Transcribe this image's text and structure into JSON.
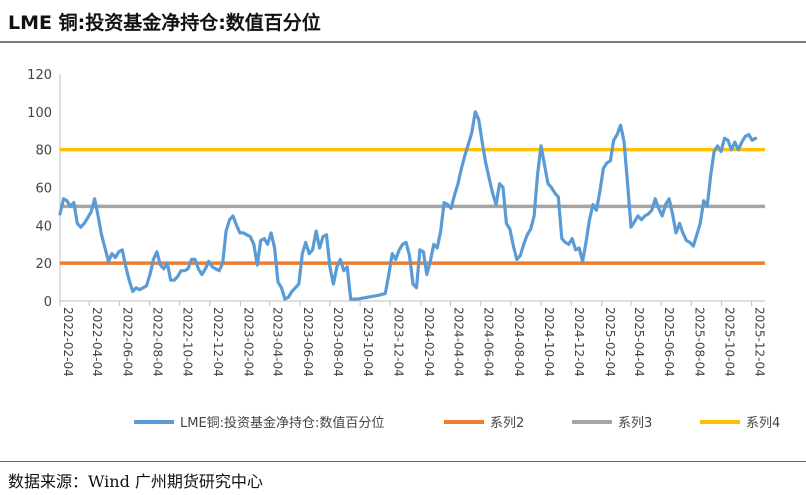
{
  "title": "LME 铜:投资基金净持仓:数值百分位",
  "source": "数据来源：Wind 广州期货研究中心",
  "chart_data": {
    "type": "line",
    "title": "LME 铜:投资基金净持仓:数值百分位",
    "xlabel": "",
    "ylabel": "",
    "ylim": [
      0,
      120
    ],
    "yticks": [
      0,
      20,
      40,
      60,
      80,
      100,
      120
    ],
    "xlim": [
      "2022-02-04",
      "2025-12-31"
    ],
    "xticks": [
      "2022-02-04",
      "2022-04-04",
      "2022-06-04",
      "2022-08-04",
      "2022-10-04",
      "2022-12-04",
      "2023-02-04",
      "2023-04-04",
      "2023-06-04",
      "2023-08-04",
      "2023-10-04",
      "2023-12-04",
      "2024-02-04",
      "2024-04-04",
      "2024-06-04",
      "2024-08-04",
      "2024-10-04",
      "2024-12-04",
      "2025-02-04",
      "2025-04-04",
      "2025-06-04",
      "2025-08-04",
      "2025-10-04",
      "2025-12-04"
    ],
    "grid": false,
    "legend": "bottom",
    "series": [
      {
        "name": "LME铜:投资基金净持仓:数值百分位",
        "color": "#5b9bd5",
        "points": [
          [
            "2022-02-04",
            46
          ],
          [
            "2022-02-11",
            54
          ],
          [
            "2022-02-18",
            53
          ],
          [
            "2022-02-25",
            50
          ],
          [
            "2022-03-04",
            52
          ],
          [
            "2022-03-11",
            41
          ],
          [
            "2022-03-18",
            39
          ],
          [
            "2022-03-25",
            41
          ],
          [
            "2022-04-01",
            44
          ],
          [
            "2022-04-08",
            47
          ],
          [
            "2022-04-15",
            54
          ],
          [
            "2022-04-22",
            45
          ],
          [
            "2022-04-29",
            35
          ],
          [
            "2022-05-06",
            28
          ],
          [
            "2022-05-13",
            21
          ],
          [
            "2022-05-20",
            25
          ],
          [
            "2022-05-27",
            23
          ],
          [
            "2022-06-03",
            26
          ],
          [
            "2022-06-10",
            27
          ],
          [
            "2022-06-17",
            18
          ],
          [
            "2022-06-24",
            11
          ],
          [
            "2022-07-01",
            5
          ],
          [
            "2022-07-08",
            7
          ],
          [
            "2022-07-15",
            6
          ],
          [
            "2022-07-22",
            7
          ],
          [
            "2022-07-29",
            8
          ],
          [
            "2022-08-05",
            14
          ],
          [
            "2022-08-12",
            22
          ],
          [
            "2022-08-19",
            26
          ],
          [
            "2022-08-26",
            19
          ],
          [
            "2022-09-02",
            17
          ],
          [
            "2022-09-09",
            20
          ],
          [
            "2022-09-16",
            11
          ],
          [
            "2022-09-23",
            11
          ],
          [
            "2022-09-30",
            13
          ],
          [
            "2022-10-07",
            16
          ],
          [
            "2022-10-14",
            16
          ],
          [
            "2022-10-21",
            17
          ],
          [
            "2022-10-28",
            22
          ],
          [
            "2022-11-04",
            22
          ],
          [
            "2022-11-11",
            17
          ],
          [
            "2022-11-18",
            14
          ],
          [
            "2022-11-25",
            17
          ],
          [
            "2022-12-02",
            21
          ],
          [
            "2022-12-09",
            18
          ],
          [
            "2022-12-16",
            17
          ],
          [
            "2022-12-23",
            16
          ],
          [
            "2022-12-30",
            20
          ],
          [
            "2023-01-06",
            37
          ],
          [
            "2023-01-13",
            43
          ],
          [
            "2023-01-20",
            45
          ],
          [
            "2023-01-27",
            40
          ],
          [
            "2023-02-03",
            36
          ],
          [
            "2023-02-10",
            36
          ],
          [
            "2023-02-17",
            35
          ],
          [
            "2023-02-24",
            34
          ],
          [
            "2023-03-03",
            30
          ],
          [
            "2023-03-10",
            19
          ],
          [
            "2023-03-17",
            32
          ],
          [
            "2023-03-24",
            33
          ],
          [
            "2023-03-31",
            30
          ],
          [
            "2023-04-07",
            36
          ],
          [
            "2023-04-14",
            28
          ],
          [
            "2023-04-21",
            10
          ],
          [
            "2023-04-28",
            7
          ],
          [
            "2023-05-05",
            1
          ],
          [
            "2023-05-12",
            2
          ],
          [
            "2023-05-19",
            5
          ],
          [
            "2023-05-26",
            7
          ],
          [
            "2023-06-02",
            9
          ],
          [
            "2023-06-09",
            25
          ],
          [
            "2023-06-16",
            31
          ],
          [
            "2023-06-23",
            25
          ],
          [
            "2023-06-30",
            27
          ],
          [
            "2023-07-07",
            37
          ],
          [
            "2023-07-14",
            28
          ],
          [
            "2023-07-21",
            34
          ],
          [
            "2023-07-28",
            35
          ],
          [
            "2023-08-04",
            18
          ],
          [
            "2023-08-11",
            9
          ],
          [
            "2023-08-18",
            18
          ],
          [
            "2023-08-25",
            22
          ],
          [
            "2023-09-01",
            16
          ],
          [
            "2023-09-08",
            18
          ],
          [
            "2023-09-15",
            1
          ],
          [
            "2023-09-29",
            1
          ],
          [
            "2023-10-20",
            2
          ],
          [
            "2023-11-10",
            3
          ],
          [
            "2023-11-24",
            4
          ],
          [
            "2023-12-01",
            14
          ],
          [
            "2023-12-08",
            25
          ],
          [
            "2023-12-15",
            22
          ],
          [
            "2023-12-22",
            27
          ],
          [
            "2023-12-29",
            30
          ],
          [
            "2024-01-05",
            31
          ],
          [
            "2024-01-12",
            24
          ],
          [
            "2024-01-19",
            9
          ],
          [
            "2024-01-26",
            7
          ],
          [
            "2024-02-02",
            27
          ],
          [
            "2024-02-09",
            26
          ],
          [
            "2024-02-16",
            14
          ],
          [
            "2024-02-23",
            21
          ],
          [
            "2024-03-01",
            30
          ],
          [
            "2024-03-08",
            28
          ],
          [
            "2024-03-15",
            37
          ],
          [
            "2024-03-22",
            52
          ],
          [
            "2024-03-29",
            51
          ],
          [
            "2024-04-05",
            49
          ],
          [
            "2024-04-12",
            56
          ],
          [
            "2024-04-19",
            62
          ],
          [
            "2024-04-26",
            70
          ],
          [
            "2024-05-03",
            77
          ],
          [
            "2024-05-10",
            83
          ],
          [
            "2024-05-17",
            89
          ],
          [
            "2024-05-24",
            100
          ],
          [
            "2024-05-31",
            96
          ],
          [
            "2024-06-07",
            84
          ],
          [
            "2024-06-14",
            73
          ],
          [
            "2024-06-21",
            65
          ],
          [
            "2024-06-28",
            57
          ],
          [
            "2024-07-05",
            51
          ],
          [
            "2024-07-12",
            62
          ],
          [
            "2024-07-19",
            60
          ],
          [
            "2024-07-26",
            41
          ],
          [
            "2024-08-02",
            38
          ],
          [
            "2024-08-09",
            29
          ],
          [
            "2024-08-16",
            22
          ],
          [
            "2024-08-23",
            24
          ],
          [
            "2024-08-30",
            30
          ],
          [
            "2024-09-06",
            35
          ],
          [
            "2024-09-13",
            38
          ],
          [
            "2024-09-20",
            45
          ],
          [
            "2024-09-27",
            67
          ],
          [
            "2024-10-04",
            82
          ],
          [
            "2024-10-11",
            72
          ],
          [
            "2024-10-18",
            62
          ],
          [
            "2024-10-25",
            60
          ],
          [
            "2024-11-01",
            57
          ],
          [
            "2024-11-08",
            55
          ],
          [
            "2024-11-15",
            33
          ],
          [
            "2024-11-22",
            31
          ],
          [
            "2024-11-29",
            30
          ],
          [
            "2024-12-06",
            33
          ],
          [
            "2024-12-13",
            27
          ],
          [
            "2024-12-20",
            28
          ],
          [
            "2024-12-27",
            21
          ],
          [
            "2025-01-03",
            31
          ],
          [
            "2025-01-10",
            43
          ],
          [
            "2025-01-17",
            51
          ],
          [
            "2025-01-24",
            48
          ],
          [
            "2025-01-31",
            58
          ],
          [
            "2025-02-07",
            70
          ],
          [
            "2025-02-14",
            73
          ],
          [
            "2025-02-21",
            74
          ],
          [
            "2025-02-28",
            85
          ],
          [
            "2025-03-07",
            88
          ],
          [
            "2025-03-14",
            93
          ],
          [
            "2025-03-21",
            84
          ],
          [
            "2025-03-28",
            62
          ],
          [
            "2025-04-04",
            39
          ],
          [
            "2025-04-11",
            42
          ],
          [
            "2025-04-18",
            45
          ],
          [
            "2025-04-25",
            43
          ],
          [
            "2025-05-02",
            45
          ],
          [
            "2025-05-09",
            46
          ],
          [
            "2025-05-16",
            48
          ],
          [
            "2025-05-23",
            54
          ],
          [
            "2025-05-30",
            49
          ],
          [
            "2025-06-06",
            45
          ],
          [
            "2025-06-13",
            51
          ],
          [
            "2025-06-20",
            54
          ],
          [
            "2025-06-27",
            46
          ],
          [
            "2025-07-04",
            36
          ],
          [
            "2025-07-11",
            41
          ],
          [
            "2025-07-18",
            36
          ],
          [
            "2025-07-25",
            32
          ],
          [
            "2025-08-01",
            31
          ],
          [
            "2025-08-08",
            29
          ],
          [
            "2025-08-15",
            35
          ],
          [
            "2025-08-22",
            41
          ],
          [
            "2025-08-29",
            53
          ],
          [
            "2025-09-05",
            50
          ],
          [
            "2025-09-12",
            66
          ],
          [
            "2025-09-19",
            79
          ],
          [
            "2025-09-26",
            82
          ],
          [
            "2025-10-03",
            79
          ],
          [
            "2025-10-10",
            86
          ],
          [
            "2025-10-17",
            85
          ],
          [
            "2025-10-24",
            80
          ],
          [
            "2025-10-31",
            84
          ],
          [
            "2025-11-07",
            80
          ],
          [
            "2025-11-14",
            84
          ],
          [
            "2025-11-21",
            87
          ],
          [
            "2025-11-28",
            88
          ],
          [
            "2025-12-05",
            85
          ],
          [
            "2025-12-12",
            86
          ]
        ]
      },
      {
        "name": "系列2",
        "color": "#ed7d31",
        "constant": 20
      },
      {
        "name": "系列3",
        "color": "#a5a5a5",
        "constant": 50
      },
      {
        "name": "系列4",
        "color": "#ffc000",
        "constant": 80
      }
    ]
  }
}
